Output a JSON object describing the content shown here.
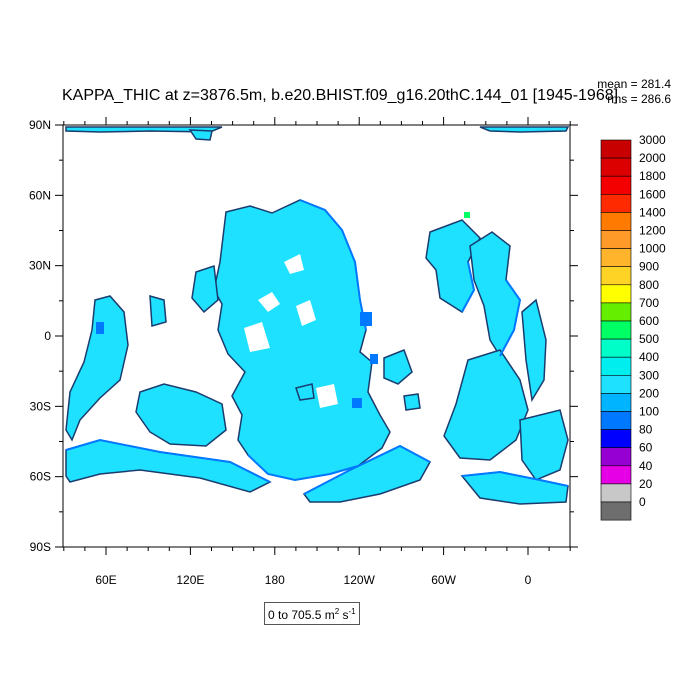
{
  "title": "KAPPA_THIC at z=3876.5m, b.e20.BHIST.f09_g16.20thC.144_01 [1945-1968]",
  "stats": {
    "mean": "mean = 281.4",
    "rms": "rms = 286.6"
  },
  "range_label": {
    "text": "0 to 705.5 m",
    "unit_sup1": "2",
    "mid": " s",
    "unit_sup2": "-1"
  },
  "map": {
    "lat_labels": [
      "90N",
      "60N",
      "30N",
      "0",
      "30S",
      "60S",
      "90S"
    ],
    "lon_labels": [
      "60E",
      "120E",
      "180",
      "120W",
      "60W",
      "0"
    ]
  },
  "colorbar": {
    "levels": [
      "3000",
      "2000",
      "1800",
      "1600",
      "1400",
      "1200",
      "1000",
      "900",
      "800",
      "700",
      "600",
      "500",
      "400",
      "300",
      "200",
      "100",
      "80",
      "60",
      "40",
      "20",
      "0"
    ],
    "colors": [
      "#c80000",
      "#dd0000",
      "#f50000",
      "#ff2a00",
      "#ff7a00",
      "#ff9a28",
      "#ffb42c",
      "#ffd226",
      "#ffff00",
      "#66ee00",
      "#00ff64",
      "#00ffc8",
      "#00eeee",
      "#1ee0ff",
      "#00b4ff",
      "#0078ff",
      "#0000ff",
      "#9600d2",
      "#e600e6",
      "#c8c8c8",
      "#6e6e6e"
    ]
  },
  "field_colors": {
    "ocean": "#1ee0ff",
    "shelf": "#0078ff",
    "edge": "#1a3c6e",
    "land": "#ffffff"
  }
}
